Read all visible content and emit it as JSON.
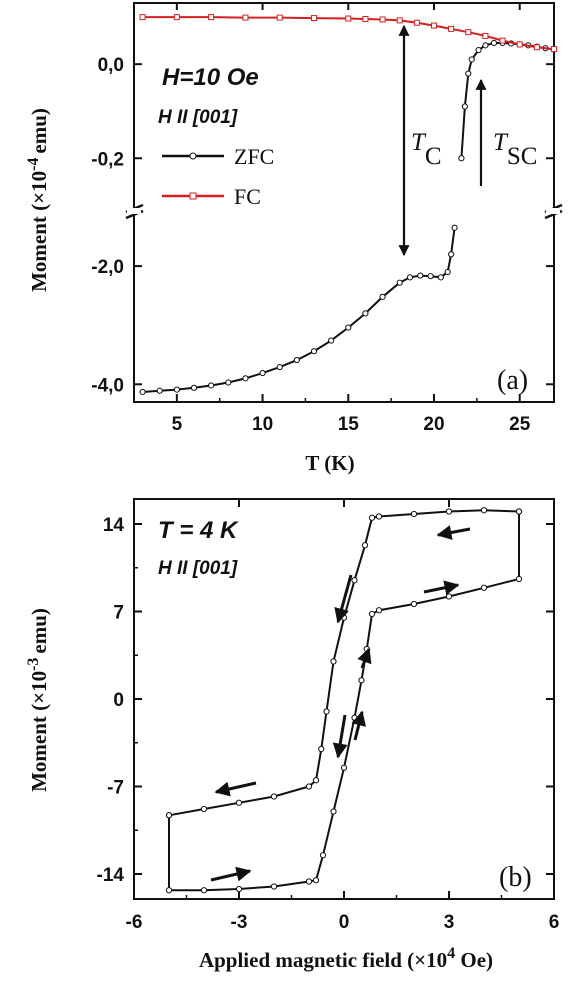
{
  "chart_data": [
    {
      "type": "line",
      "panel_label": "(a)",
      "annotation_field": "H=10 Oe",
      "annotation_orientation": "H II [001]",
      "xlabel": "T (K)",
      "ylabel_main": "Moment (×10",
      "ylabel_exp": "-4",
      "ylabel_unit": "emu)",
      "xlim": [
        2.5,
        27
      ],
      "xticks": [
        "5",
        "10",
        "15",
        "20",
        "25"
      ],
      "yaxis_break": true,
      "upper_segment": {
        "ylim": [
          -0.31,
          0.13
        ],
        "yticks": [
          "0,0",
          "-0,2"
        ]
      },
      "lower_segment": {
        "ylim": [
          -4.3,
          -1.05
        ],
        "yticks": [
          "-2,0",
          "-4,0"
        ]
      },
      "series": [
        {
          "name": "ZFC",
          "color": "#111111",
          "marker": "circle",
          "points": [
            [
              3.0,
              -4.13
            ],
            [
              4.0,
              -4.11
            ],
            [
              5.0,
              -4.09
            ],
            [
              6.0,
              -4.06
            ],
            [
              7.0,
              -4.02
            ],
            [
              8.0,
              -3.97
            ],
            [
              9.0,
              -3.9
            ],
            [
              10.0,
              -3.81
            ],
            [
              11.0,
              -3.71
            ],
            [
              12.0,
              -3.59
            ],
            [
              13.0,
              -3.44
            ],
            [
              14.0,
              -3.26
            ],
            [
              15.0,
              -3.04
            ],
            [
              16.0,
              -2.8
            ],
            [
              17.0,
              -2.52
            ],
            [
              18.0,
              -2.28
            ],
            [
              18.6,
              -2.19
            ],
            [
              19.2,
              -2.16
            ],
            [
              19.8,
              -2.17
            ],
            [
              20.4,
              -2.19
            ],
            [
              20.8,
              -2.1
            ],
            [
              21.0,
              -1.8
            ],
            [
              21.2,
              -1.35
            ],
            [
              21.6,
              -0.2
            ],
            [
              21.8,
              -0.09
            ],
            [
              22.0,
              -0.02
            ],
            [
              22.2,
              0.01
            ],
            [
              22.6,
              0.03
            ],
            [
              23.0,
              0.04
            ],
            [
              23.5,
              0.045
            ],
            [
              24.0,
              0.045
            ],
            [
              24.5,
              0.044
            ],
            [
              25.0,
              0.042
            ],
            [
              25.5,
              0.04
            ],
            [
              26.0,
              0.037
            ],
            [
              26.5,
              0.034
            ],
            [
              27.0,
              0.031
            ]
          ]
        },
        {
          "name": "FC",
          "color": "#d42020",
          "marker": "square",
          "points": [
            [
              3.0,
              0.1
            ],
            [
              5.0,
              0.1
            ],
            [
              7.0,
              0.1
            ],
            [
              9.0,
              0.099
            ],
            [
              11.0,
              0.099
            ],
            [
              13.0,
              0.098
            ],
            [
              15.0,
              0.097
            ],
            [
              16.0,
              0.096
            ],
            [
              17.0,
              0.095
            ],
            [
              18.0,
              0.093
            ],
            [
              19.0,
              0.088
            ],
            [
              20.0,
              0.082
            ],
            [
              21.0,
              0.075
            ],
            [
              22.0,
              0.068
            ],
            [
              23.0,
              0.06
            ],
            [
              24.0,
              0.05
            ],
            [
              25.0,
              0.042
            ],
            [
              26.0,
              0.036
            ],
            [
              27.0,
              0.032
            ]
          ]
        }
      ],
      "text_annotations": [
        {
          "text": "T",
          "sub": "C"
        },
        {
          "text": "T",
          "sub": "SC"
        }
      ]
    },
    {
      "type": "line",
      "panel_label": "(b)",
      "annotation_temperature": "T = 4 K",
      "annotation_orientation": "H II [001]",
      "xlabel_main": "Applied magnetic field (×10",
      "xlabel_exp": "4",
      "xlabel_unit": " Oe)",
      "ylabel_main": "Moment (×10",
      "ylabel_exp": "-3",
      "ylabel_unit": "emu)",
      "xlim": [
        -6,
        6
      ],
      "ylim": [
        -16,
        16
      ],
      "xticks": [
        "-6",
        "-3",
        "0",
        "3",
        "6"
      ],
      "yticks": [
        "14",
        "7",
        "0",
        "-7",
        "-14"
      ],
      "series": [
        {
          "name": "descending branch",
          "color": "#111111",
          "marker": "circle",
          "points": [
            [
              5.0,
              15.0
            ],
            [
              4.0,
              15.1
            ],
            [
              3.0,
              15.0
            ],
            [
              2.0,
              14.8
            ],
            [
              1.0,
              14.6
            ],
            [
              0.8,
              14.5
            ],
            [
              0.6,
              12.3
            ],
            [
              0.3,
              9.5
            ],
            [
              0.0,
              6.5
            ],
            [
              -0.3,
              3.0
            ],
            [
              -0.5,
              -1.0
            ],
            [
              -0.65,
              -4.0
            ],
            [
              -0.8,
              -6.5
            ],
            [
              -1.0,
              -7.0
            ],
            [
              -2.0,
              -7.8
            ],
            [
              -3.0,
              -8.3
            ],
            [
              -4.0,
              -8.8
            ],
            [
              -5.0,
              -9.3
            ]
          ]
        },
        {
          "name": "ascending branch",
          "color": "#111111",
          "marker": "circle",
          "points": [
            [
              -5.0,
              -9.3
            ],
            [
              -5.0,
              -15.3
            ],
            [
              -4.0,
              -15.3
            ],
            [
              -3.0,
              -15.2
            ],
            [
              -2.0,
              -15.0
            ],
            [
              -1.0,
              -14.6
            ],
            [
              -0.8,
              -14.5
            ],
            [
              -0.6,
              -12.5
            ],
            [
              -0.3,
              -9.0
            ],
            [
              0.0,
              -5.5
            ],
            [
              0.3,
              -1.5
            ],
            [
              0.5,
              1.5
            ],
            [
              0.65,
              4.0
            ],
            [
              0.8,
              6.8
            ],
            [
              1.0,
              7.1
            ],
            [
              2.0,
              7.6
            ],
            [
              3.0,
              8.2
            ],
            [
              4.0,
              8.9
            ],
            [
              5.0,
              9.6
            ],
            [
              5.0,
              15.0
            ]
          ]
        }
      ]
    }
  ]
}
